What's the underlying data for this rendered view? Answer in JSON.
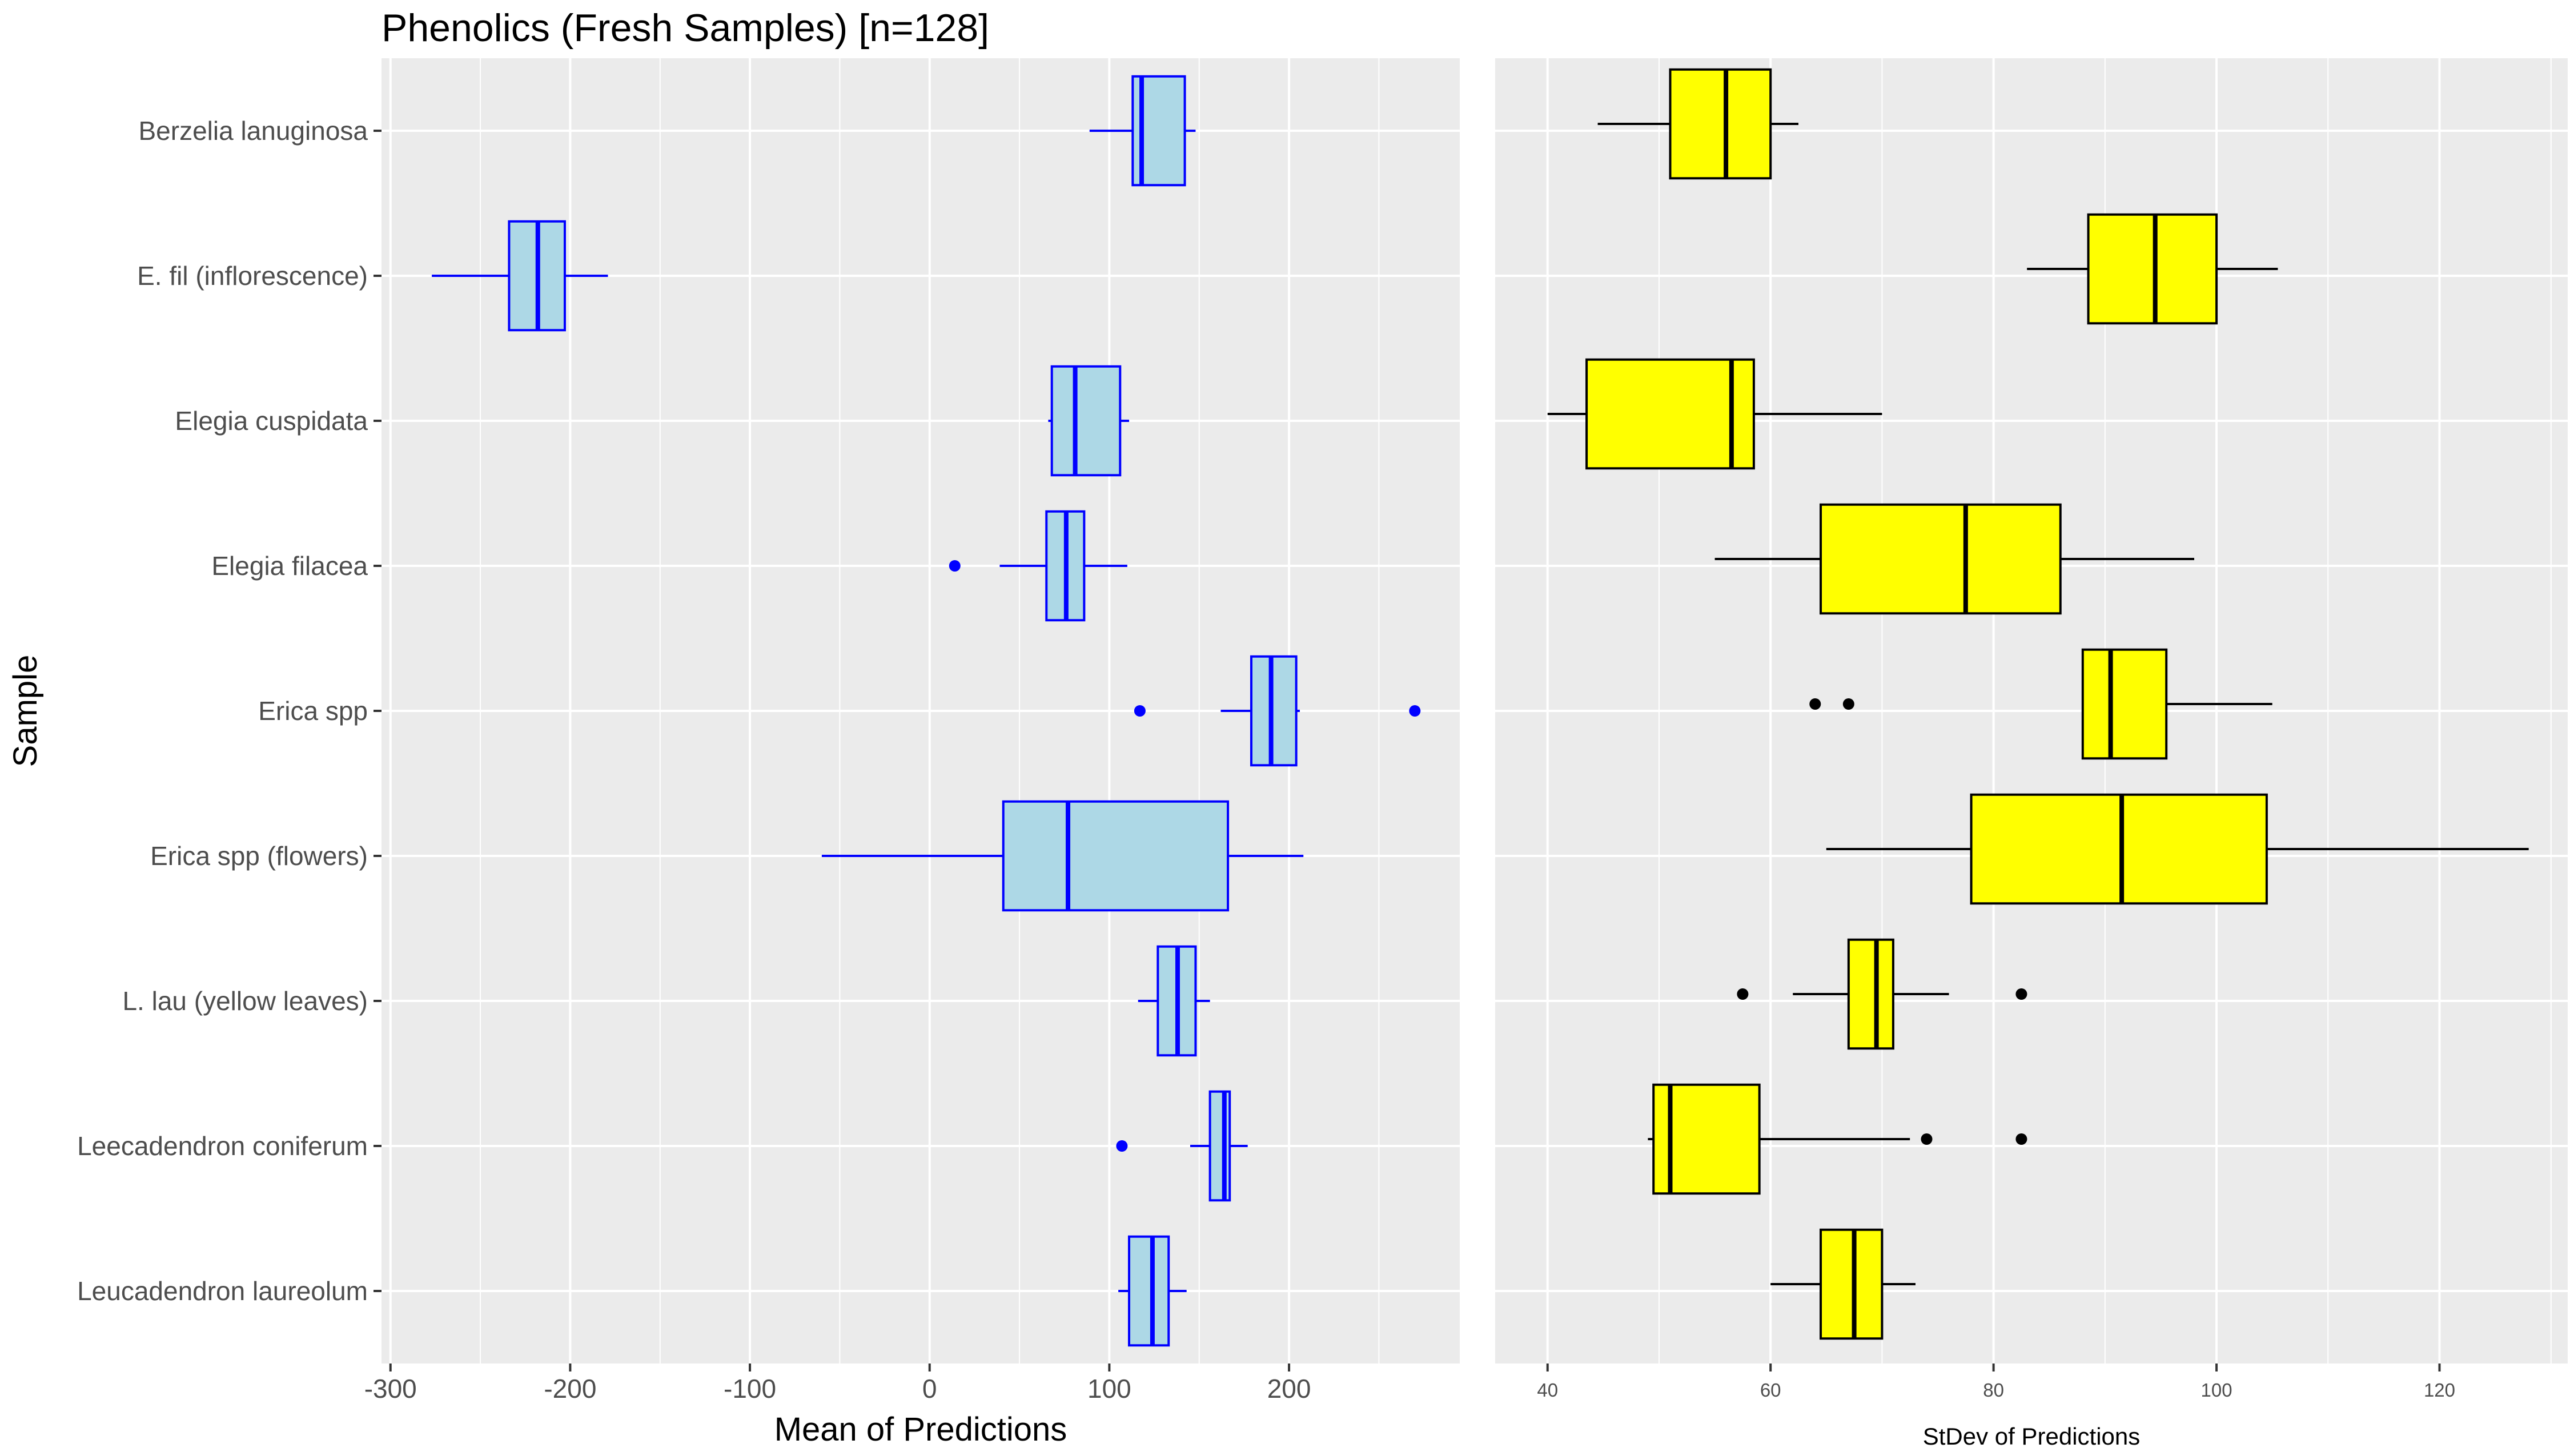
{
  "chart_data": [
    {
      "type": "box",
      "title": "Phenolics (Fresh Samples) [n=128]",
      "xlabel": "Mean of Predictions",
      "ylabel": "Sample",
      "xlim": [
        -305,
        295
      ],
      "xticks": [
        -300,
        -200,
        -100,
        0,
        100,
        200
      ],
      "grid": true,
      "fill_color": "#add8e6",
      "line_color": "#0000ff",
      "categories": [
        "Berzelia lanuginosa",
        "E. fil (inflorescence)",
        "Elegia cuspidata",
        "Elegia filacea",
        "Erica spp",
        "Erica spp (flowers)",
        "L. lau (yellow leaves)",
        "Leecadendron coniferum",
        "Leucadendron laureolum"
      ],
      "boxes": [
        {
          "whisker_low": 89,
          "q1": 113,
          "median": 118,
          "q3": 142,
          "whisker_high": 148,
          "outliers": []
        },
        {
          "whisker_low": -277,
          "q1": -234,
          "median": -218,
          "q3": -203,
          "whisker_high": -179,
          "outliers": []
        },
        {
          "whisker_low": 66,
          "q1": 68,
          "median": 81,
          "q3": 106,
          "whisker_high": 111,
          "outliers": []
        },
        {
          "whisker_low": 39,
          "q1": 65,
          "median": 76,
          "q3": 86,
          "whisker_high": 110,
          "outliers": [
            14
          ]
        },
        {
          "whisker_low": 162,
          "q1": 179,
          "median": 190,
          "q3": 204,
          "whisker_high": 206,
          "outliers": [
            117,
            270
          ]
        },
        {
          "whisker_low": -60,
          "q1": 41,
          "median": 77,
          "q3": 166,
          "whisker_high": 208,
          "outliers": []
        },
        {
          "whisker_low": 116,
          "q1": 127,
          "median": 138,
          "q3": 148,
          "whisker_high": 156,
          "outliers": []
        },
        {
          "whisker_low": 145,
          "q1": 156,
          "median": 164,
          "q3": 167,
          "whisker_high": 177,
          "outliers": [
            107
          ]
        },
        {
          "whisker_low": 105,
          "q1": 111,
          "median": 124,
          "q3": 133,
          "whisker_high": 143,
          "outliers": []
        }
      ]
    },
    {
      "type": "box",
      "title": "",
      "xlabel": "StDev of Predictions",
      "ylabel": "",
      "xlim": [
        35.3,
        131.5
      ],
      "xticks": [
        40,
        60,
        80,
        100,
        120
      ],
      "grid": true,
      "fill_color": "#ffff00",
      "line_color": "#000000",
      "categories": [
        "Berzelia lanuginosa",
        "E. fil (inflorescence)",
        "Elegia cuspidata",
        "Elegia filacea",
        "Erica spp",
        "Erica spp (flowers)",
        "L. lau (yellow leaves)",
        "Leecadendron coniferum",
        "Leucadendron laureolum"
      ],
      "boxes": [
        {
          "whisker_low": 44.5,
          "q1": 51,
          "median": 56,
          "q3": 60,
          "whisker_high": 62.5,
          "outliers": []
        },
        {
          "whisker_low": 83,
          "q1": 88.5,
          "median": 94.5,
          "q3": 100,
          "whisker_high": 105.5,
          "outliers": []
        },
        {
          "whisker_low": 40,
          "q1": 43.5,
          "median": 56.5,
          "q3": 58.5,
          "whisker_high": 70,
          "outliers": []
        },
        {
          "whisker_low": 55,
          "q1": 64.5,
          "median": 77.5,
          "q3": 86,
          "whisker_high": 98,
          "outliers": []
        },
        {
          "whisker_low": 88,
          "q1": 88,
          "median": 90.5,
          "q3": 95.5,
          "whisker_high": 105,
          "outliers": [
            64,
            67
          ]
        },
        {
          "whisker_low": 65,
          "q1": 78,
          "median": 91.5,
          "q3": 104.5,
          "whisker_high": 128,
          "outliers": []
        },
        {
          "whisker_low": 62,
          "q1": 67,
          "median": 69.5,
          "q3": 71,
          "whisker_high": 76,
          "outliers": [
            57.5,
            82.5
          ]
        },
        {
          "whisker_low": 49,
          "q1": 49.5,
          "median": 51,
          "q3": 59,
          "whisker_high": 72.5,
          "outliers": [
            74,
            82.5
          ]
        },
        {
          "whisker_low": 60,
          "q1": 64.5,
          "median": 67.5,
          "q3": 70,
          "whisker_high": 73,
          "outliers": []
        }
      ]
    }
  ]
}
